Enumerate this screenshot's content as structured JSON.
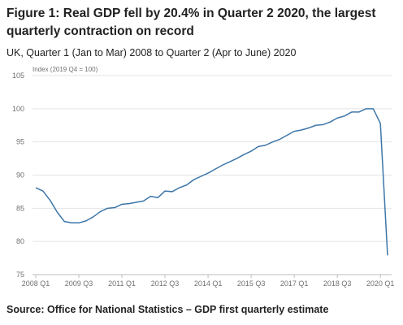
{
  "title": "Figure 1: Real GDP fell by 20.4% in Quarter 2 2020, the largest quarterly contraction on record",
  "subtitle": "UK, Quarter 1 (Jan to Mar) 2008 to Quarter 2 (Apr to June) 2020",
  "source": "Source: Office for National Statistics – GDP first quarterly estimate",
  "chart_data": {
    "type": "line",
    "ylabel": "Index (2019 Q4 = 100)",
    "ylim": [
      75,
      105
    ],
    "yticks": [
      75,
      80,
      85,
      90,
      95,
      100,
      105
    ],
    "xtick_labels": [
      "2008 Q1",
      "2009 Q3",
      "2011 Q1",
      "2012 Q3",
      "2014 Q1",
      "2015 Q3",
      "2017 Q1",
      "2018 Q3",
      "2020 Q1"
    ],
    "grid": true,
    "line_color": "#3d76a8",
    "x": [
      "2008 Q1",
      "2008 Q2",
      "2008 Q3",
      "2008 Q4",
      "2009 Q1",
      "2009 Q2",
      "2009 Q3",
      "2009 Q4",
      "2010 Q1",
      "2010 Q2",
      "2010 Q3",
      "2010 Q4",
      "2011 Q1",
      "2011 Q2",
      "2011 Q3",
      "2011 Q4",
      "2012 Q1",
      "2012 Q2",
      "2012 Q3",
      "2012 Q4",
      "2013 Q1",
      "2013 Q2",
      "2013 Q3",
      "2013 Q4",
      "2014 Q1",
      "2014 Q2",
      "2014 Q3",
      "2014 Q4",
      "2015 Q1",
      "2015 Q2",
      "2015 Q3",
      "2015 Q4",
      "2016 Q1",
      "2016 Q2",
      "2016 Q3",
      "2016 Q4",
      "2017 Q1",
      "2017 Q2",
      "2017 Q3",
      "2017 Q4",
      "2018 Q1",
      "2018 Q2",
      "2018 Q3",
      "2018 Q4",
      "2019 Q1",
      "2019 Q2",
      "2019 Q3",
      "2019 Q4",
      "2020 Q1",
      "2020 Q2"
    ],
    "series": [
      {
        "values": [
          88.1,
          87.6,
          86.2,
          84.4,
          83.0,
          82.8,
          82.8,
          83.1,
          83.7,
          84.5,
          85.0,
          85.1,
          85.6,
          85.7,
          85.9,
          86.1,
          86.8,
          86.6,
          87.6,
          87.5,
          88.1,
          88.5,
          89.3,
          89.8,
          90.3,
          90.9,
          91.5,
          92.0,
          92.5,
          93.1,
          93.6,
          94.3,
          94.5,
          95.0,
          95.4,
          96.0,
          96.6,
          96.8,
          97.1,
          97.5,
          97.6,
          98.0,
          98.6,
          98.9,
          99.5,
          99.5,
          100.0,
          100.0,
          97.8,
          77.9
        ]
      }
    ]
  }
}
